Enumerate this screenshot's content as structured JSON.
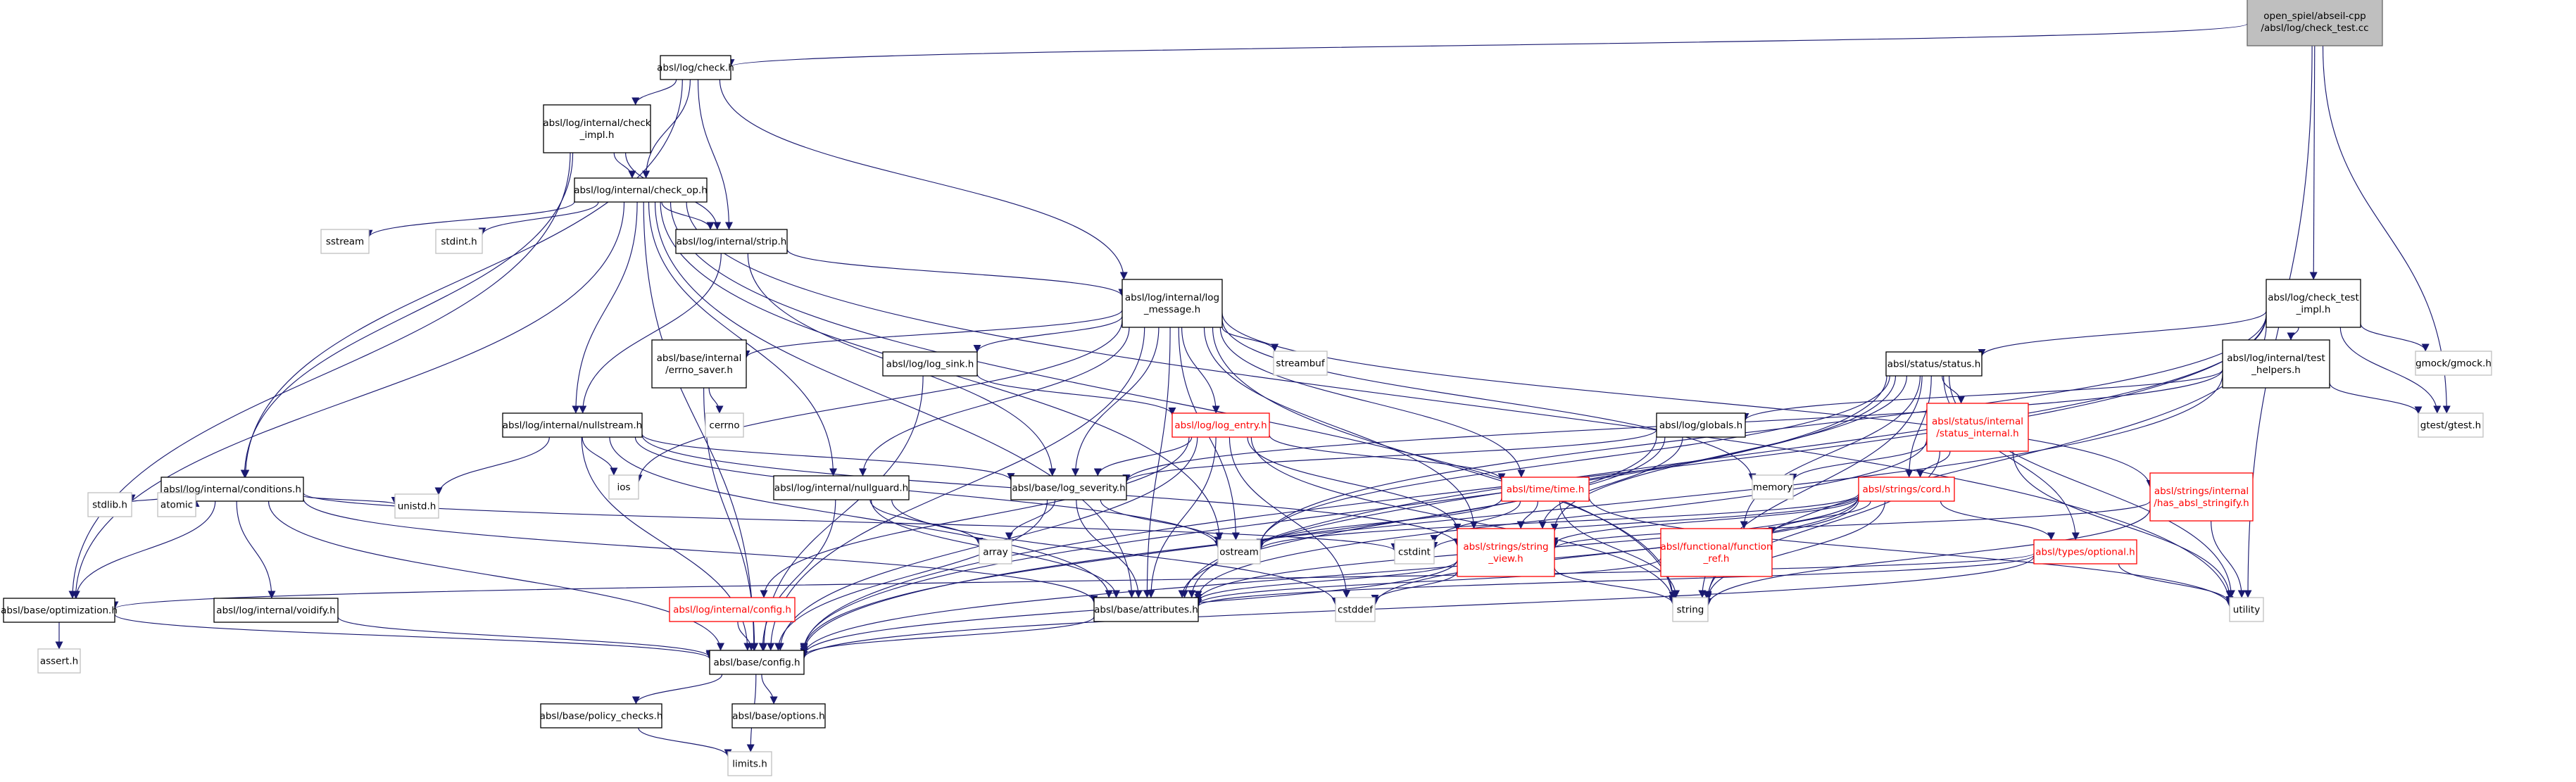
{
  "graph": {
    "colors": {
      "edge": "#191970",
      "node_border": "#000000",
      "node_border_missing_doc": "#ff0000",
      "node_border_external": "#bfbfbf",
      "root_fill": "#bfbfbf"
    },
    "nodes": [
      {
        "id": "root",
        "lines": [
          "open_spiel/abseil-cpp",
          "/absl/log/check_test.cc"
        ],
        "style": "root"
      },
      {
        "id": "check_h",
        "lines": [
          "absl/log/check.h"
        ],
        "style": "normal"
      },
      {
        "id": "check_impl",
        "lines": [
          "absl/log/internal/check",
          "_impl.h"
        ],
        "style": "normal"
      },
      {
        "id": "check_op",
        "lines": [
          "absl/log/internal/check_op.h"
        ],
        "style": "normal"
      },
      {
        "id": "sstream",
        "lines": [
          "sstream"
        ],
        "style": "gray"
      },
      {
        "id": "stdint_h",
        "lines": [
          "stdint.h"
        ],
        "style": "gray"
      },
      {
        "id": "strip",
        "lines": [
          "absl/log/internal/strip.h"
        ],
        "style": "normal"
      },
      {
        "id": "log_message",
        "lines": [
          "absl/log/internal/log",
          "_message.h"
        ],
        "style": "normal"
      },
      {
        "id": "streambuf",
        "lines": [
          "streambuf"
        ],
        "style": "gray"
      },
      {
        "id": "errno_saver",
        "lines": [
          "absl/base/internal",
          "/errno_saver.h"
        ],
        "style": "normal"
      },
      {
        "id": "cerrno",
        "lines": [
          "cerrno"
        ],
        "style": "gray"
      },
      {
        "id": "log_sink",
        "lines": [
          "absl/log/log_sink.h"
        ],
        "style": "normal"
      },
      {
        "id": "log_entry",
        "lines": [
          "absl/log/log_entry.h"
        ],
        "style": "red"
      },
      {
        "id": "nullstream",
        "lines": [
          "absl/log/internal/nullstream.h"
        ],
        "style": "normal"
      },
      {
        "id": "ios",
        "lines": [
          "ios"
        ],
        "style": "gray"
      },
      {
        "id": "conditions",
        "lines": [
          "absl/log/internal/conditions.h"
        ],
        "style": "normal"
      },
      {
        "id": "stdlib_h",
        "lines": [
          "stdlib.h"
        ],
        "style": "gray"
      },
      {
        "id": "atomic",
        "lines": [
          "atomic"
        ],
        "style": "gray"
      },
      {
        "id": "unistd_h",
        "lines": [
          "unistd.h"
        ],
        "style": "gray"
      },
      {
        "id": "nullguard",
        "lines": [
          "absl/log/internal/nullguard.h"
        ],
        "style": "normal"
      },
      {
        "id": "log_severity",
        "lines": [
          "absl/base/log_severity.h"
        ],
        "style": "normal"
      },
      {
        "id": "array",
        "lines": [
          "array"
        ],
        "style": "gray"
      },
      {
        "id": "ostream",
        "lines": [
          "ostream"
        ],
        "style": "gray"
      },
      {
        "id": "cstdint",
        "lines": [
          "cstdint"
        ],
        "style": "gray"
      },
      {
        "id": "optimization",
        "lines": [
          "absl/base/optimization.h"
        ],
        "style": "normal"
      },
      {
        "id": "assert_h",
        "lines": [
          "assert.h"
        ],
        "style": "gray"
      },
      {
        "id": "voidify",
        "lines": [
          "absl/log/internal/voidify.h"
        ],
        "style": "normal"
      },
      {
        "id": "internal_config",
        "lines": [
          "absl/log/internal/config.h"
        ],
        "style": "red"
      },
      {
        "id": "attributes",
        "lines": [
          "absl/base/attributes.h"
        ],
        "style": "normal"
      },
      {
        "id": "config",
        "lines": [
          "absl/base/config.h"
        ],
        "style": "normal"
      },
      {
        "id": "policy_checks",
        "lines": [
          "absl/base/policy_checks.h"
        ],
        "style": "normal"
      },
      {
        "id": "options",
        "lines": [
          "absl/base/options.h"
        ],
        "style": "normal"
      },
      {
        "id": "limits_h",
        "lines": [
          "limits.h"
        ],
        "style": "gray"
      },
      {
        "id": "cstddef",
        "lines": [
          "cstddef"
        ],
        "style": "gray"
      },
      {
        "id": "time",
        "lines": [
          "absl/time/time.h"
        ],
        "style": "red"
      },
      {
        "id": "string_view",
        "lines": [
          "absl/strings/string",
          "_view.h"
        ],
        "style": "red"
      },
      {
        "id": "string",
        "lines": [
          "string"
        ],
        "style": "gray"
      },
      {
        "id": "memory",
        "lines": [
          "memory"
        ],
        "style": "gray"
      },
      {
        "id": "globals",
        "lines": [
          "absl/log/globals.h"
        ],
        "style": "normal"
      },
      {
        "id": "status",
        "lines": [
          "absl/status/status.h"
        ],
        "style": "normal"
      },
      {
        "id": "status_internal",
        "lines": [
          "absl/status/internal",
          "/status_internal.h"
        ],
        "style": "red"
      },
      {
        "id": "cord",
        "lines": [
          "absl/strings/cord.h"
        ],
        "style": "red"
      },
      {
        "id": "function_ref",
        "lines": [
          "absl/functional/function",
          "_ref.h"
        ],
        "style": "red"
      },
      {
        "id": "optional",
        "lines": [
          "absl/types/optional.h"
        ],
        "style": "red"
      },
      {
        "id": "utility",
        "lines": [
          "utility"
        ],
        "style": "gray"
      },
      {
        "id": "has_stringify",
        "lines": [
          "absl/strings/internal",
          "/has_absl_stringify.h"
        ],
        "style": "red"
      },
      {
        "id": "check_test_impl",
        "lines": [
          "absl/log/check_test",
          "_impl.h"
        ],
        "style": "normal"
      },
      {
        "id": "test_helpers",
        "lines": [
          "absl/log/internal/test",
          "_helpers.h"
        ],
        "style": "normal"
      },
      {
        "id": "gmock",
        "lines": [
          "gmock/gmock.h"
        ],
        "style": "gray"
      },
      {
        "id": "gtest",
        "lines": [
          "gtest/gtest.h"
        ],
        "style": "gray"
      }
    ],
    "edges": [
      [
        "root",
        "check_h"
      ],
      [
        "root",
        "check_test_impl"
      ],
      [
        "root",
        "gtest"
      ],
      [
        "root",
        "utility"
      ],
      [
        "check_h",
        "check_impl"
      ],
      [
        "check_h",
        "check_op"
      ],
      [
        "check_h",
        "conditions"
      ],
      [
        "check_h",
        "log_message"
      ],
      [
        "check_h",
        "strip"
      ],
      [
        "check_impl",
        "check_op"
      ],
      [
        "check_impl",
        "conditions"
      ],
      [
        "check_impl",
        "optimization"
      ],
      [
        "check_impl",
        "strip"
      ],
      [
        "check_op",
        "sstream"
      ],
      [
        "check_op",
        "stdint_h"
      ],
      [
        "check_op",
        "strip"
      ],
      [
        "check_op",
        "nullstream"
      ],
      [
        "check_op",
        "nullguard"
      ],
      [
        "check_op",
        "optimization"
      ],
      [
        "check_op",
        "attributes"
      ],
      [
        "check_op",
        "config"
      ],
      [
        "check_op",
        "ostream"
      ],
      [
        "check_op",
        "string"
      ],
      [
        "check_op",
        "utility"
      ],
      [
        "strip",
        "log_message"
      ],
      [
        "strip",
        "nullstream"
      ],
      [
        "strip",
        "log_severity"
      ],
      [
        "log_message",
        "streambuf"
      ],
      [
        "log_message",
        "errno_saver"
      ],
      [
        "log_message",
        "log_sink"
      ],
      [
        "log_message",
        "log_entry"
      ],
      [
        "log_message",
        "nullguard"
      ],
      [
        "log_message",
        "log_severity"
      ],
      [
        "log_message",
        "ios"
      ],
      [
        "log_message",
        "memory"
      ],
      [
        "log_message",
        "ostream"
      ],
      [
        "log_message",
        "time"
      ],
      [
        "log_message",
        "string_view"
      ],
      [
        "log_message",
        "has_stringify"
      ],
      [
        "log_message",
        "string"
      ],
      [
        "log_message",
        "attributes"
      ],
      [
        "log_message",
        "config"
      ],
      [
        "errno_saver",
        "cerrno"
      ],
      [
        "errno_saver",
        "config"
      ],
      [
        "log_sink",
        "log_entry"
      ],
      [
        "log_sink",
        "config"
      ],
      [
        "log_entry",
        "log_severity"
      ],
      [
        "log_entry",
        "internal_config"
      ],
      [
        "log_entry",
        "time"
      ],
      [
        "log_entry",
        "string_view"
      ],
      [
        "log_entry",
        "attributes"
      ],
      [
        "log_entry",
        "config"
      ],
      [
        "log_entry",
        "cstddef"
      ],
      [
        "log_entry",
        "string"
      ],
      [
        "nullstream",
        "ios"
      ],
      [
        "nullstream",
        "unistd_h"
      ],
      [
        "nullstream",
        "log_severity"
      ],
      [
        "nullstream",
        "ostream"
      ],
      [
        "nullstream",
        "string_view"
      ],
      [
        "nullstream",
        "attributes"
      ],
      [
        "nullstream",
        "config"
      ],
      [
        "conditions",
        "stdlib_h"
      ],
      [
        "conditions",
        "atomic"
      ],
      [
        "conditions",
        "unistd_h"
      ],
      [
        "conditions",
        "cstdint"
      ],
      [
        "conditions",
        "optimization"
      ],
      [
        "conditions",
        "voidify"
      ],
      [
        "conditions",
        "attributes"
      ],
      [
        "conditions",
        "config"
      ],
      [
        "nullguard",
        "array"
      ],
      [
        "nullguard",
        "cstddef"
      ],
      [
        "nullguard",
        "attributes"
      ],
      [
        "nullguard",
        "config"
      ],
      [
        "log_severity",
        "array"
      ],
      [
        "log_severity",
        "ostream"
      ],
      [
        "log_severity",
        "attributes"
      ],
      [
        "log_severity",
        "config"
      ],
      [
        "optimization",
        "assert_h"
      ],
      [
        "optimization",
        "config"
      ],
      [
        "voidify",
        "config"
      ],
      [
        "internal_config",
        "config"
      ],
      [
        "attributes",
        "config"
      ],
      [
        "config",
        "policy_checks"
      ],
      [
        "config",
        "options"
      ],
      [
        "config",
        "limits_h"
      ],
      [
        "policy_checks",
        "limits_h"
      ],
      [
        "time",
        "cstdint"
      ],
      [
        "time",
        "ostream"
      ],
      [
        "time",
        "string_view"
      ],
      [
        "time",
        "string"
      ],
      [
        "time",
        "utility"
      ],
      [
        "string_view",
        "cstddef"
      ],
      [
        "string_view",
        "string"
      ],
      [
        "string_view",
        "attributes"
      ],
      [
        "string_view",
        "config"
      ],
      [
        "globals",
        "log_severity"
      ],
      [
        "globals",
        "string_view"
      ],
      [
        "globals",
        "attributes"
      ],
      [
        "globals",
        "config"
      ],
      [
        "status",
        "ostream"
      ],
      [
        "status",
        "string"
      ],
      [
        "status",
        "utility"
      ],
      [
        "status",
        "status_internal"
      ],
      [
        "status",
        "cord"
      ],
      [
        "status",
        "function_ref"
      ],
      [
        "status",
        "optional"
      ],
      [
        "status",
        "string_view"
      ],
      [
        "status",
        "attributes"
      ],
      [
        "status",
        "config"
      ],
      [
        "status_internal",
        "memory"
      ],
      [
        "status_internal",
        "string"
      ],
      [
        "status_internal",
        "utility"
      ],
      [
        "status_internal",
        "cord"
      ],
      [
        "status_internal",
        "attributes"
      ],
      [
        "cord",
        "cstdint"
      ],
      [
        "cord",
        "ostream"
      ],
      [
        "cord",
        "string"
      ],
      [
        "cord",
        "string_view"
      ],
      [
        "cord",
        "function_ref"
      ],
      [
        "cord",
        "optional"
      ],
      [
        "cord",
        "attributes"
      ],
      [
        "cord",
        "config"
      ],
      [
        "cord",
        "cstddef"
      ],
      [
        "function_ref",
        "attributes"
      ],
      [
        "optional",
        "utility"
      ],
      [
        "optional",
        "attributes"
      ],
      [
        "optional",
        "config"
      ],
      [
        "optional",
        "optimization"
      ],
      [
        "has_stringify",
        "string"
      ],
      [
        "has_stringify",
        "utility"
      ],
      [
        "has_stringify",
        "string_view"
      ],
      [
        "check_test_impl",
        "status"
      ],
      [
        "check_test_impl",
        "test_helpers"
      ],
      [
        "check_test_impl",
        "gmock"
      ],
      [
        "check_test_impl",
        "gtest"
      ],
      [
        "check_test_impl",
        "string"
      ],
      [
        "check_test_impl",
        "ostream"
      ],
      [
        "check_test_impl",
        "config"
      ],
      [
        "check_test_impl",
        "attributes"
      ],
      [
        "test_helpers",
        "globals"
      ],
      [
        "test_helpers",
        "log_severity"
      ],
      [
        "test_helpers",
        "gtest"
      ],
      [
        "test_helpers",
        "config"
      ]
    ]
  }
}
